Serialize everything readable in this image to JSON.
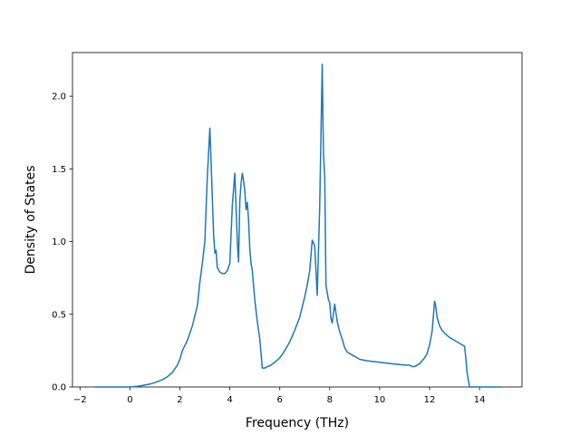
{
  "chart_data": {
    "type": "line",
    "title": "",
    "xlabel": "Frequency (THz)",
    "ylabel": "Density of States",
    "xlim": [
      -2.3,
      15.7
    ],
    "ylim": [
      0.0,
      2.3
    ],
    "x_ticks": [
      -2,
      0,
      2,
      4,
      6,
      8,
      10,
      12,
      14
    ],
    "x_tick_labels": [
      "−2",
      "0",
      "2",
      "4",
      "6",
      "8",
      "10",
      "12",
      "14"
    ],
    "y_ticks": [
      0.0,
      0.5,
      1.0,
      1.5,
      2.0
    ],
    "y_tick_labels": [
      "0.0",
      "0.5",
      "1.0",
      "1.5",
      "2.0"
    ],
    "grid": false,
    "legend": "none",
    "line_color": "#1f77b4",
    "series": [
      {
        "x": [
          -1.4,
          -1.0,
          -0.5,
          0.0,
          0.3,
          0.5,
          0.8,
          1.0,
          1.3,
          1.5,
          1.7,
          1.9,
          2.0,
          2.1,
          2.3,
          2.5,
          2.7,
          2.8,
          2.9,
          3.0,
          3.1,
          3.2,
          3.25,
          3.3,
          3.35,
          3.4,
          3.45,
          3.5,
          3.6,
          3.7,
          3.8,
          3.9,
          4.0,
          4.1,
          4.2,
          4.3,
          4.35,
          4.4,
          4.45,
          4.5,
          4.55,
          4.6,
          4.65,
          4.7,
          4.75,
          4.8,
          4.85,
          4.9,
          4.95,
          5.0,
          5.1,
          5.2,
          5.3,
          5.4,
          5.5,
          5.6,
          5.8,
          6.0,
          6.2,
          6.4,
          6.6,
          6.8,
          7.0,
          7.1,
          7.2,
          7.3,
          7.4,
          7.45,
          7.5,
          7.6,
          7.7,
          7.75,
          7.8,
          7.85,
          7.9,
          7.95,
          8.0,
          8.05,
          8.1,
          8.2,
          8.3,
          8.4,
          8.5,
          8.55,
          8.6,
          8.7,
          8.8,
          8.9,
          9.0,
          9.1,
          9.2,
          9.5,
          10.0,
          10.5,
          11.0,
          11.2,
          11.3,
          11.4,
          11.5,
          11.6,
          11.7,
          11.8,
          11.9,
          12.0,
          12.1,
          12.2,
          12.25,
          12.3,
          12.4,
          12.5,
          12.6,
          12.8,
          13.0,
          13.2,
          13.3,
          13.4,
          13.45,
          13.5,
          13.6,
          13.8,
          14.0,
          14.5,
          14.9
        ],
        "y": [
          0.0,
          0.0,
          0.0,
          0.0,
          0.005,
          0.01,
          0.02,
          0.03,
          0.05,
          0.07,
          0.1,
          0.15,
          0.19,
          0.25,
          0.32,
          0.42,
          0.56,
          0.72,
          0.85,
          1.0,
          1.45,
          1.78,
          1.55,
          1.3,
          1.05,
          0.92,
          0.94,
          0.82,
          0.79,
          0.78,
          0.78,
          0.8,
          0.85,
          1.25,
          1.47,
          1.0,
          0.86,
          1.28,
          1.4,
          1.47,
          1.42,
          1.35,
          1.22,
          1.27,
          1.15,
          0.95,
          0.85,
          0.8,
          0.7,
          0.6,
          0.45,
          0.33,
          0.13,
          0.13,
          0.14,
          0.145,
          0.17,
          0.2,
          0.25,
          0.31,
          0.39,
          0.48,
          0.62,
          0.7,
          0.8,
          1.01,
          0.97,
          0.8,
          0.63,
          1.25,
          2.22,
          1.6,
          1.45,
          0.7,
          0.65,
          0.6,
          0.58,
          0.47,
          0.44,
          0.57,
          0.45,
          0.38,
          0.33,
          0.3,
          0.27,
          0.24,
          0.23,
          0.22,
          0.21,
          0.2,
          0.19,
          0.18,
          0.17,
          0.16,
          0.15,
          0.15,
          0.14,
          0.14,
          0.15,
          0.16,
          0.18,
          0.2,
          0.23,
          0.29,
          0.38,
          0.59,
          0.55,
          0.48,
          0.42,
          0.39,
          0.37,
          0.34,
          0.32,
          0.3,
          0.29,
          0.28,
          0.2,
          0.1,
          0.0,
          0.0,
          0.0,
          0.0,
          0.0
        ],
        "color": "#1f77b4"
      }
    ]
  }
}
